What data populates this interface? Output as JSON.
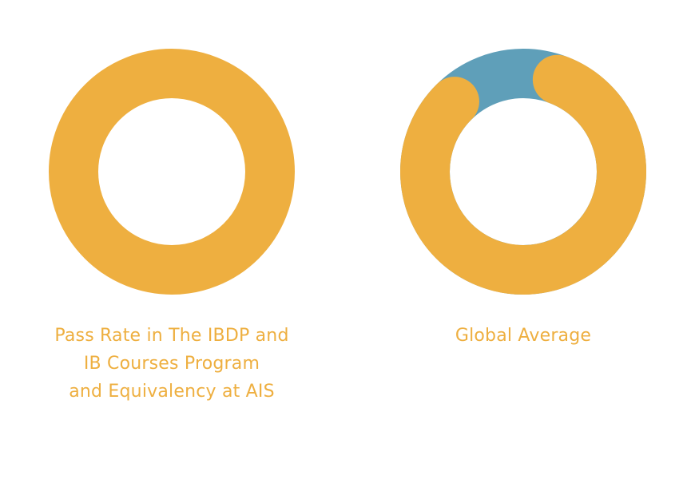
{
  "colors": {
    "primary": "#EEAF40",
    "remainder": "#5F9FB9",
    "caption": "#EEAF40"
  },
  "chart_data": [
    {
      "type": "pie",
      "style": "donut",
      "title": "Pass Rate in The IBDP and\nIB Courses Program\n and Equivalency at AIS",
      "slices": [
        {
          "label": "",
          "value": 100,
          "color": "#EEAF40"
        },
        {
          "label": "",
          "value": 0,
          "color": "#5F9FB9"
        }
      ]
    },
    {
      "type": "pie",
      "style": "donut",
      "title": "Global Average",
      "slices": [
        {
          "label": "",
          "value": 82,
          "color": "#EEAF40"
        },
        {
          "label": "",
          "value": 18,
          "color": "#5F9FB9"
        }
      ]
    }
  ]
}
